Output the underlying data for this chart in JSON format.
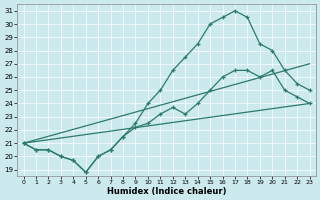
{
  "xlabel": "Humidex (Indice chaleur)",
  "background_color": "#cce9ed",
  "line_color": "#2d7a6b",
  "xlim": [
    -0.5,
    23.5
  ],
  "ylim": [
    18.5,
    31.5
  ],
  "xticks": [
    0,
    1,
    2,
    3,
    4,
    5,
    6,
    7,
    8,
    9,
    10,
    11,
    12,
    13,
    14,
    15,
    16,
    17,
    18,
    19,
    20,
    21,
    22,
    23
  ],
  "yticks": [
    19,
    20,
    21,
    22,
    23,
    24,
    25,
    26,
    27,
    28,
    29,
    30,
    31
  ],
  "series": [
    {
      "x": [
        0,
        23
      ],
      "y": [
        21.0,
        24.0
      ],
      "markers": false
    },
    {
      "x": [
        0,
        23
      ],
      "y": [
        21.0,
        27.0
      ],
      "markers": false
    },
    {
      "x": [
        0,
        1,
        2,
        3,
        4,
        5,
        6,
        7,
        8,
        9,
        10,
        11,
        12,
        13,
        14,
        15,
        16,
        17,
        18,
        19,
        20,
        21,
        22,
        23
      ],
      "y": [
        21.0,
        20.5,
        20.5,
        20.0,
        19.7,
        18.8,
        20.0,
        20.5,
        21.5,
        22.2,
        22.5,
        23.2,
        23.7,
        23.2,
        24.0,
        25.0,
        26.0,
        26.5,
        26.5,
        26.0,
        26.5,
        25.0,
        24.5,
        24.0
      ],
      "markers": true
    },
    {
      "x": [
        0,
        1,
        2,
        3,
        4,
        5,
        6,
        7,
        8,
        9,
        10,
        11,
        12,
        13,
        14,
        15,
        16,
        17,
        18,
        19,
        20,
        21,
        22,
        23
      ],
      "y": [
        21.0,
        20.5,
        20.5,
        20.0,
        19.7,
        18.8,
        20.0,
        20.5,
        21.5,
        22.5,
        24.0,
        25.0,
        26.5,
        27.5,
        28.5,
        30.0,
        30.5,
        31.0,
        30.5,
        28.5,
        28.0,
        26.5,
        25.5,
        25.0
      ],
      "markers": true
    }
  ]
}
